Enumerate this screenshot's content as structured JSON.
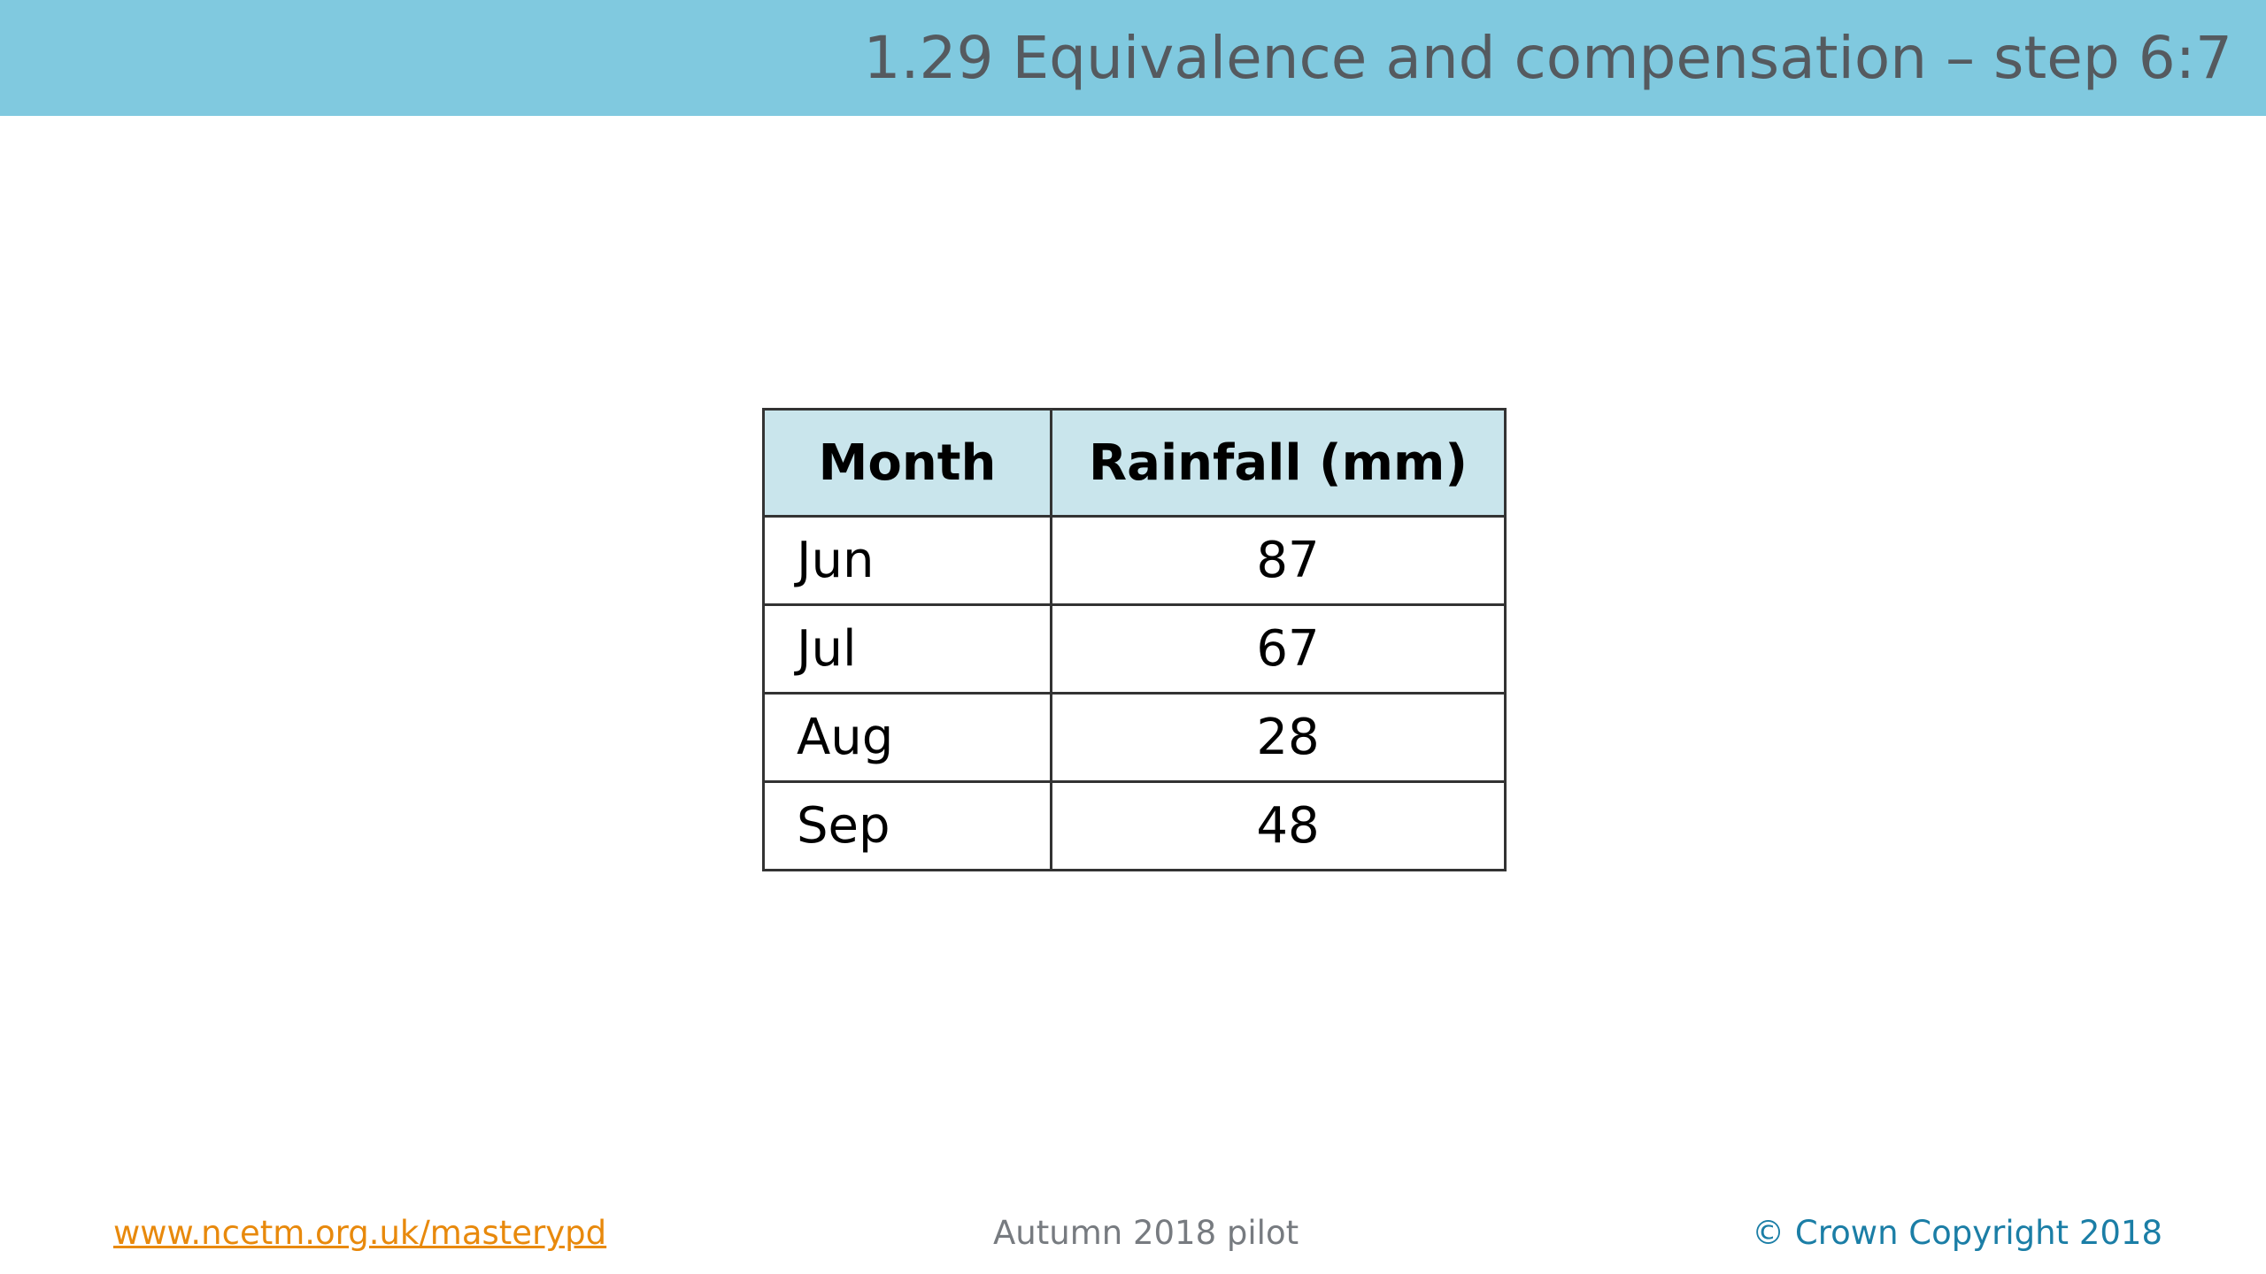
{
  "header": {
    "title": "1.29 Equivalence and compensation – step 6:7",
    "bar_color": "#80c9df"
  },
  "table": {
    "columns": [
      "Month",
      "Rainfall (mm)"
    ],
    "rows": [
      {
        "month": "Jun",
        "rainfall": "87"
      },
      {
        "month": "Jul",
        "rainfall": "67"
      },
      {
        "month": "Aug",
        "rainfall": "28"
      },
      {
        "month": "Sep",
        "rainfall": "48"
      }
    ],
    "header_color": "#c9e5ec"
  },
  "footer": {
    "link": "www.ncetm.org.uk/masterypd",
    "center": "Autumn 2018 pilot",
    "copyright": "© Crown Copyright 2018",
    "link_color": "#e8890c",
    "copyright_color": "#1b7ea6"
  }
}
